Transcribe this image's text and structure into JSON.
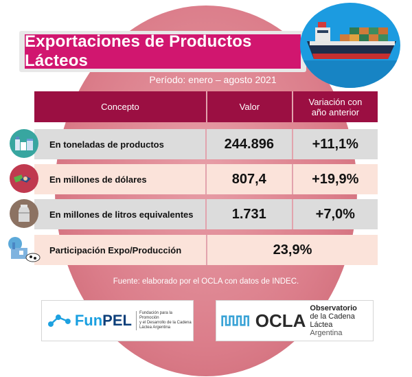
{
  "title": "Exportaciones de Productos Lácteos",
  "period": "Período: enero – agosto 2021",
  "headers": {
    "concept": "Concepto",
    "value": "Valor",
    "variation": "Variación con año anterior"
  },
  "rows": [
    {
      "label": "En toneladas de productos",
      "value": "244.896",
      "variation": "+11,1%",
      "icon": "dairy-products-icon"
    },
    {
      "label": "En millones de dólares",
      "value": "807,4",
      "variation": "+19,9%",
      "icon": "money-handshake-icon"
    },
    {
      "label": "En millones de litros equivalentes",
      "value": "1.731",
      "variation": "+7,0%",
      "icon": "milk-can-icon"
    }
  ],
  "participation": {
    "label": "Participación Expo/Producción",
    "value": "23,9%",
    "icon": "dairy-factory-icon"
  },
  "source": "Fuente: elaborado por el OCLA con datos de INDEC.",
  "logos": {
    "funpel": {
      "name_a": "Fun",
      "name_b": "PEL",
      "line1": "Fundación para la Promoción",
      "line2": "y el Desarrollo de la Cadena",
      "line3": "Láctea Argentina"
    },
    "ocla": {
      "name": "OCLA",
      "line1": "Observatorio",
      "line2": "de la Cadena Láctea",
      "line3": "Argentina"
    }
  },
  "colors": {
    "accent": "#d1166f",
    "header": "#9b0f42",
    "background_circle": "#db7d8a",
    "ship_circle": "#1c9be0"
  }
}
